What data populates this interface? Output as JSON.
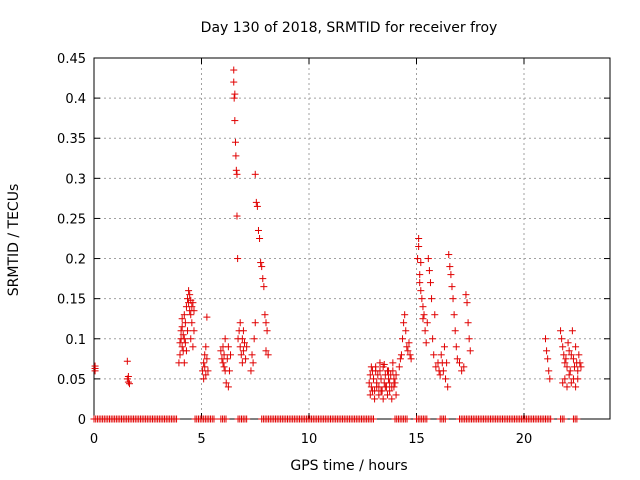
{
  "chart_data": {
    "type": "scatter",
    "title": "Day 130 of 2018, SRMTID for receiver froy",
    "xlabel": "GPS time / hours",
    "ylabel": "SRMTID / TECUs",
    "xlim": [
      0,
      24
    ],
    "ylim": [
      0,
      0.45
    ],
    "xticks": [
      0,
      5,
      10,
      15,
      20
    ],
    "xtick_labels": [
      "0",
      "5",
      "10",
      "15",
      "20"
    ],
    "yticks": [
      0,
      0.05,
      0.1,
      0.15,
      0.2,
      0.25,
      0.3,
      0.35,
      0.4,
      0.45
    ],
    "ytick_labels": [
      "0",
      "0.05",
      "0.1",
      "0.15",
      "0.2",
      "0.25",
      "0.3",
      "0.35",
      "0.4",
      "0.45"
    ],
    "marker": "+",
    "color": "#e00000",
    "grid": true,
    "zero_intervals": [
      [
        0.0,
        3.9
      ],
      [
        4.7,
        5.6
      ],
      [
        5.9,
        6.2
      ],
      [
        6.7,
        7.1
      ],
      [
        7.8,
        13.0
      ],
      [
        14.0,
        14.6
      ],
      [
        15.0,
        15.5
      ],
      [
        16.1,
        16.4
      ],
      [
        17.0,
        21.3
      ],
      [
        21.7,
        21.9
      ],
      [
        22.3,
        22.5
      ]
    ],
    "series": [
      {
        "name": "SRMTID",
        "x": [
          0.05,
          0.05,
          0.05,
          1.55,
          1.55,
          1.6,
          1.6,
          1.65,
          3.95,
          4.0,
          4.0,
          4.05,
          4.05,
          4.1,
          4.1,
          4.1,
          4.15,
          4.15,
          4.2,
          4.2,
          4.2,
          4.25,
          4.25,
          4.3,
          4.3,
          4.35,
          4.35,
          4.4,
          4.4,
          4.45,
          4.45,
          4.5,
          4.5,
          4.5,
          4.55,
          4.55,
          4.6,
          4.6,
          4.65,
          4.65,
          5.05,
          5.1,
          5.1,
          5.15,
          5.15,
          5.2,
          5.2,
          5.25,
          5.25,
          5.3,
          5.9,
          5.95,
          6.0,
          6.0,
          6.05,
          6.05,
          6.1,
          6.1,
          6.15,
          6.2,
          6.25,
          6.25,
          6.3,
          6.35,
          6.5,
          6.5,
          6.52,
          6.55,
          6.55,
          6.58,
          6.6,
          6.62,
          6.65,
          6.65,
          6.68,
          6.7,
          6.75,
          6.8,
          6.8,
          6.85,
          6.9,
          6.9,
          6.95,
          6.95,
          7.0,
          7.05,
          7.1,
          7.3,
          7.35,
          7.4,
          7.45,
          7.5,
          7.5,
          7.55,
          7.6,
          7.65,
          7.7,
          7.75,
          7.8,
          7.85,
          7.9,
          7.95,
          8.0,
          8.0,
          8.05,
          8.1,
          12.8,
          12.85,
          12.9,
          12.95,
          13.0,
          13.05,
          13.1,
          13.15,
          13.2,
          13.25,
          13.3,
          13.35,
          13.4,
          13.45,
          13.5,
          13.55,
          13.6,
          13.65,
          13.7,
          13.75,
          13.8,
          13.85,
          13.9,
          13.95,
          14.0,
          14.05,
          12.85,
          12.95,
          13.05,
          13.15,
          13.25,
          13.35,
          13.45,
          13.55,
          13.65,
          13.75,
          13.85,
          13.95,
          14.05,
          12.9,
          13.1,
          13.3,
          13.5,
          13.7,
          13.9,
          14.2,
          14.25,
          14.3,
          14.35,
          14.4,
          14.45,
          14.5,
          14.55,
          14.6,
          14.65,
          14.7,
          14.75,
          15.05,
          15.1,
          15.1,
          15.15,
          15.15,
          15.2,
          15.2,
          15.25,
          15.3,
          15.3,
          15.35,
          15.4,
          15.45,
          15.5,
          15.55,
          15.6,
          15.65,
          15.7,
          15.75,
          15.8,
          15.85,
          15.9,
          16.0,
          16.05,
          16.1,
          16.15,
          16.2,
          16.25,
          16.3,
          16.35,
          16.4,
          16.45,
          16.5,
          16.55,
          16.6,
          16.65,
          16.7,
          16.75,
          16.8,
          16.85,
          16.9,
          17.0,
          17.1,
          17.2,
          17.3,
          17.35,
          17.4,
          17.45,
          17.5,
          21.0,
          21.05,
          21.1,
          21.15,
          21.2,
          21.7,
          21.75,
          21.8,
          21.85,
          21.9,
          21.95,
          22.0,
          22.05,
          22.1,
          22.15,
          22.2,
          22.25,
          22.3,
          22.35,
          22.4,
          22.45,
          22.5,
          22.55,
          22.6,
          22.65,
          21.8,
          21.9,
          22.0,
          22.1,
          22.2,
          22.3,
          22.4,
          22.5
        ],
        "y": [
          0.066,
          0.063,
          0.06,
          0.072,
          0.05,
          0.046,
          0.053,
          0.044,
          0.07,
          0.08,
          0.095,
          0.1,
          0.11,
          0.09,
          0.115,
          0.125,
          0.085,
          0.105,
          0.07,
          0.1,
          0.13,
          0.095,
          0.12,
          0.085,
          0.14,
          0.11,
          0.15,
          0.145,
          0.16,
          0.135,
          0.155,
          0.13,
          0.148,
          0.1,
          0.14,
          0.12,
          0.145,
          0.09,
          0.135,
          0.11,
          0.06,
          0.07,
          0.05,
          0.08,
          0.065,
          0.09,
          0.055,
          0.127,
          0.075,
          0.06,
          0.085,
          0.075,
          0.07,
          0.09,
          0.065,
          0.08,
          0.06,
          0.1,
          0.045,
          0.075,
          0.04,
          0.09,
          0.06,
          0.08,
          0.435,
          0.42,
          0.4,
          0.405,
          0.372,
          0.345,
          0.328,
          0.31,
          0.305,
          0.253,
          0.2,
          0.1,
          0.11,
          0.09,
          0.12,
          0.08,
          0.1,
          0.07,
          0.11,
          0.085,
          0.095,
          0.075,
          0.09,
          0.06,
          0.08,
          0.07,
          0.1,
          0.305,
          0.12,
          0.27,
          0.265,
          0.235,
          0.225,
          0.195,
          0.19,
          0.175,
          0.165,
          0.13,
          0.12,
          0.085,
          0.11,
          0.08,
          0.045,
          0.055,
          0.04,
          0.06,
          0.05,
          0.035,
          0.065,
          0.045,
          0.055,
          0.04,
          0.06,
          0.05,
          0.035,
          0.065,
          0.045,
          0.055,
          0.04,
          0.06,
          0.05,
          0.045,
          0.055,
          0.04,
          0.06,
          0.05,
          0.045,
          0.055,
          0.03,
          0.035,
          0.025,
          0.04,
          0.03,
          0.035,
          0.025,
          0.04,
          0.03,
          0.035,
          0.025,
          0.04,
          0.03,
          0.065,
          0.06,
          0.07,
          0.068,
          0.06,
          0.07,
          0.065,
          0.075,
          0.08,
          0.1,
          0.12,
          0.13,
          0.11,
          0.09,
          0.085,
          0.095,
          0.08,
          0.075,
          0.2,
          0.215,
          0.225,
          0.18,
          0.17,
          0.16,
          0.195,
          0.15,
          0.14,
          0.125,
          0.13,
          0.11,
          0.095,
          0.12,
          0.2,
          0.185,
          0.17,
          0.15,
          0.1,
          0.08,
          0.13,
          0.065,
          0.07,
          0.06,
          0.055,
          0.08,
          0.07,
          0.06,
          0.09,
          0.05,
          0.07,
          0.04,
          0.205,
          0.19,
          0.18,
          0.165,
          0.15,
          0.13,
          0.11,
          0.09,
          0.075,
          0.07,
          0.06,
          0.065,
          0.155,
          0.145,
          0.12,
          0.1,
          0.085,
          0.1,
          0.085,
          0.075,
          0.06,
          0.05,
          0.11,
          0.1,
          0.09,
          0.08,
          0.07,
          0.075,
          0.065,
          0.095,
          0.085,
          0.06,
          0.08,
          0.11,
          0.075,
          0.065,
          0.09,
          0.07,
          0.06,
          0.08,
          0.07,
          0.065,
          0.045,
          0.05,
          0.04,
          0.055,
          0.045,
          0.05,
          0.04,
          0.05
        ]
      }
    ]
  }
}
